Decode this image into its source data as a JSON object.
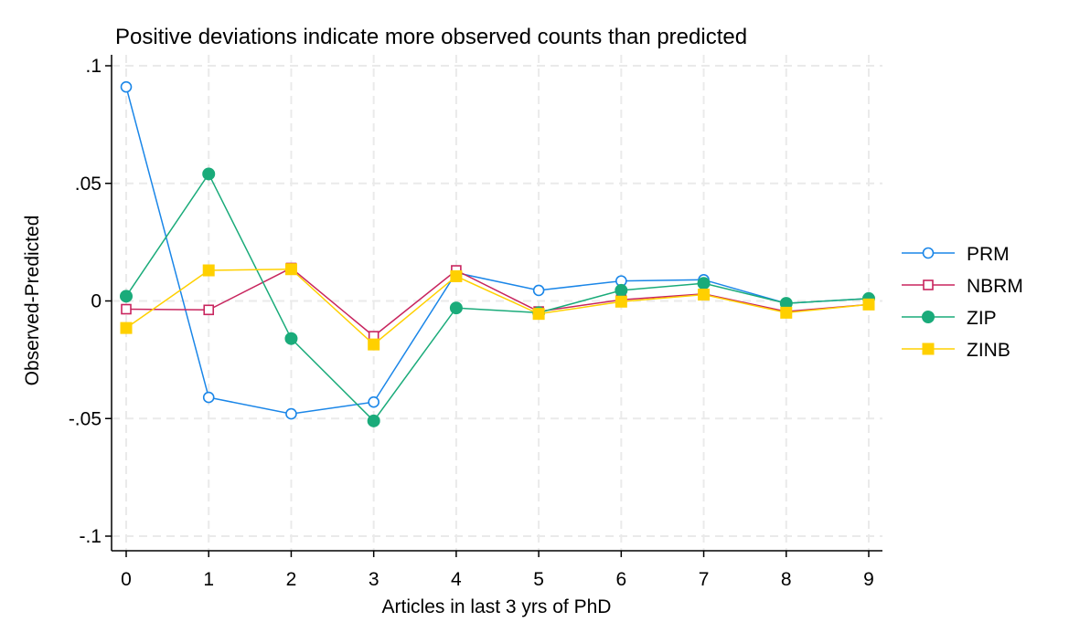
{
  "chart_data": {
    "type": "line",
    "title": "Positive deviations indicate more observed counts than predicted",
    "xlabel": "Articles in last 3 yrs of PhD",
    "ylabel": "Observed-Predicted",
    "x": [
      0,
      1,
      2,
      3,
      4,
      5,
      6,
      7,
      8,
      9
    ],
    "xlim": [
      0,
      9
    ],
    "ylim": [
      -0.1,
      0.1
    ],
    "x_ticks": [
      "0",
      "1",
      "2",
      "3",
      "4",
      "5",
      "6",
      "7",
      "8",
      "9"
    ],
    "y_ticks": [
      {
        "value": 0.1,
        "label": ".1"
      },
      {
        "value": 0.05,
        "label": ".05"
      },
      {
        "value": 0,
        "label": "0"
      },
      {
        "value": -0.05,
        "label": "-.05"
      },
      {
        "value": -0.1,
        "label": "-.1"
      }
    ],
    "grid": true,
    "legend_position": "right",
    "series": [
      {
        "name": "PRM",
        "color": "#1a86e8",
        "marker": "circle-hollow",
        "values": [
          0.091,
          -0.041,
          -0.048,
          -0.043,
          0.012,
          0.0045,
          0.0085,
          0.009,
          -0.001,
          0.001
        ]
      },
      {
        "name": "NBRM",
        "color": "#c8255e",
        "marker": "square-hollow",
        "values": [
          -0.0035,
          -0.0038,
          0.014,
          -0.015,
          0.013,
          -0.0045,
          0.0005,
          0.003,
          -0.0045,
          -0.0015
        ]
      },
      {
        "name": "ZIP",
        "color": "#1aab7a",
        "marker": "circle-filled",
        "values": [
          0.002,
          0.054,
          -0.016,
          -0.051,
          -0.003,
          -0.005,
          0.0045,
          0.0075,
          -0.001,
          0.001
        ]
      },
      {
        "name": "ZINB",
        "color": "#ffd000",
        "marker": "square-filled",
        "values": [
          -0.0115,
          0.013,
          0.0135,
          -0.0185,
          0.0105,
          -0.0055,
          -0.0003,
          0.0027,
          -0.005,
          -0.0015
        ]
      }
    ]
  }
}
